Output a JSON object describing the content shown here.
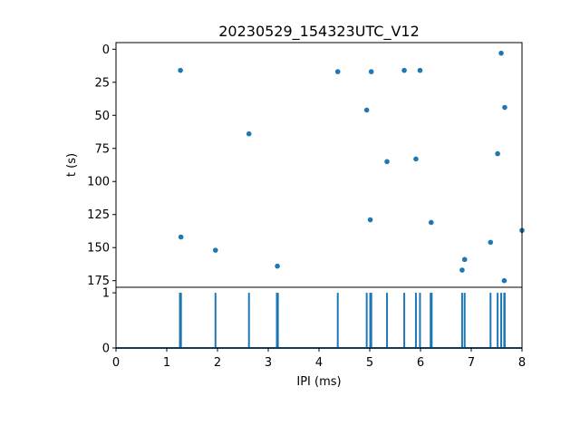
{
  "chart_data": [
    {
      "type": "scatter",
      "title": "20230529_154323UTC_V12",
      "xlabel": "",
      "ylabel": "t (s)",
      "xlim": [
        0,
        8
      ],
      "ylim": [
        180,
        -5
      ],
      "y_inverted": true,
      "yticks": [
        0,
        25,
        50,
        75,
        100,
        125,
        150,
        175
      ],
      "color": "#1f77b4",
      "points": [
        {
          "x": 1.27,
          "y": 16
        },
        {
          "x": 1.28,
          "y": 142
        },
        {
          "x": 1.96,
          "y": 152
        },
        {
          "x": 2.62,
          "y": 64
        },
        {
          "x": 3.18,
          "y": 164
        },
        {
          "x": 4.37,
          "y": 17
        },
        {
          "x": 4.94,
          "y": 46
        },
        {
          "x": 5.01,
          "y": 129
        },
        {
          "x": 5.03,
          "y": 17
        },
        {
          "x": 5.34,
          "y": 85
        },
        {
          "x": 5.68,
          "y": 16
        },
        {
          "x": 5.91,
          "y": 83
        },
        {
          "x": 5.99,
          "y": 16
        },
        {
          "x": 6.21,
          "y": 131
        },
        {
          "x": 6.82,
          "y": 167
        },
        {
          "x": 6.87,
          "y": 159
        },
        {
          "x": 7.38,
          "y": 146
        },
        {
          "x": 7.52,
          "y": 79
        },
        {
          "x": 7.59,
          "y": 3
        },
        {
          "x": 7.65,
          "y": 175
        },
        {
          "x": 7.66,
          "y": 44
        },
        {
          "x": 8.0,
          "y": 137
        }
      ]
    },
    {
      "type": "line",
      "xlabel": "IPI (ms)",
      "ylabel": "",
      "xlim": [
        0,
        8
      ],
      "ylim": [
        0,
        1.1
      ],
      "xticks": [
        0,
        1,
        2,
        3,
        4,
        5,
        6,
        7,
        8
      ],
      "yticks": [
        0,
        1
      ],
      "color": "#1f77b4",
      "spikes_x": [
        1.26,
        1.28,
        1.96,
        2.62,
        3.17,
        3.19,
        4.37,
        4.94,
        5.01,
        5.03,
        5.34,
        5.68,
        5.91,
        5.99,
        6.2,
        6.22,
        6.82,
        6.87,
        7.38,
        7.52,
        7.59,
        7.65,
        7.66
      ]
    }
  ]
}
